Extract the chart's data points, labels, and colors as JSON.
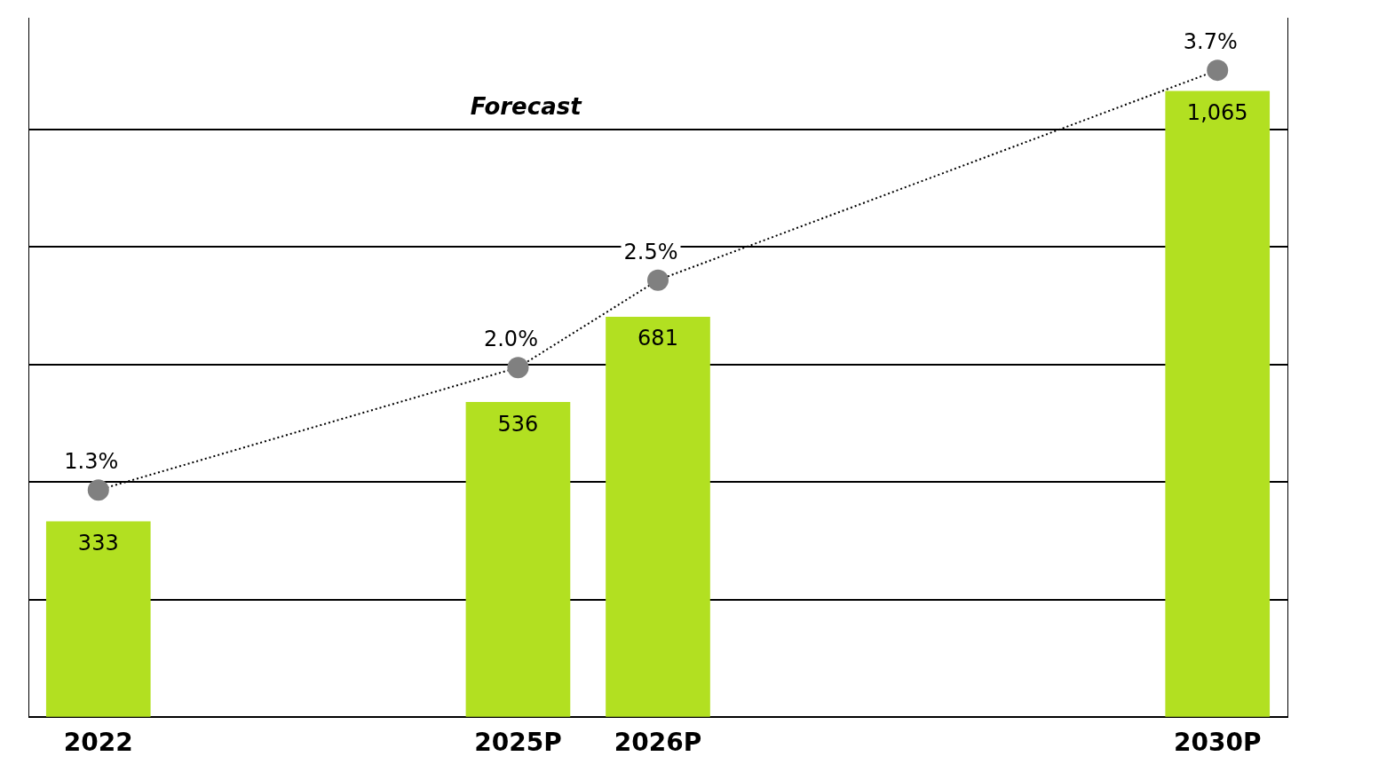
{
  "chart_data": {
    "type": "bar",
    "x": [
      2022,
      2025,
      2026,
      2030
    ],
    "xlim": [
      2021.5,
      2030.5
    ],
    "ylim": [
      0,
      1190
    ],
    "y2lim": [
      0,
      4
    ],
    "xticks": [
      2022,
      {
        "value": 2025,
        "label": "2025P"
      },
      {
        "value": 2026,
        "label": "2026P"
      },
      {
        "value": 2030,
        "label": "2030P"
      }
    ],
    "yticks": [
      {
        "value": 0,
        "label": null
      },
      {
        "value": 200,
        "label": null
      },
      {
        "value": 400,
        "label": null
      },
      {
        "value": 600,
        "label": null
      },
      {
        "value": 800,
        "label": null
      },
      {
        "value": 1000,
        "label": null
      }
    ],
    "tick_labels": "x",
    "grid": "y",
    "annotations": [
      "Forecast"
    ],
    "series": [
      {
        "color": "#b2e021",
        "values": [
          333,
          536,
          681,
          1065
        ],
        "value_labels": [
          "333",
          "536",
          "681",
          "1,065"
        ]
      },
      {
        "type": "line",
        "axis": "y2",
        "color": "#808080",
        "marker": "circle",
        "line_style": "dotted",
        "values": [
          1.3,
          2.0,
          2.5,
          3.7
        ],
        "value_labels": [
          "1.3%",
          "2.0%",
          "2.5%",
          "3.7%"
        ]
      }
    ]
  }
}
